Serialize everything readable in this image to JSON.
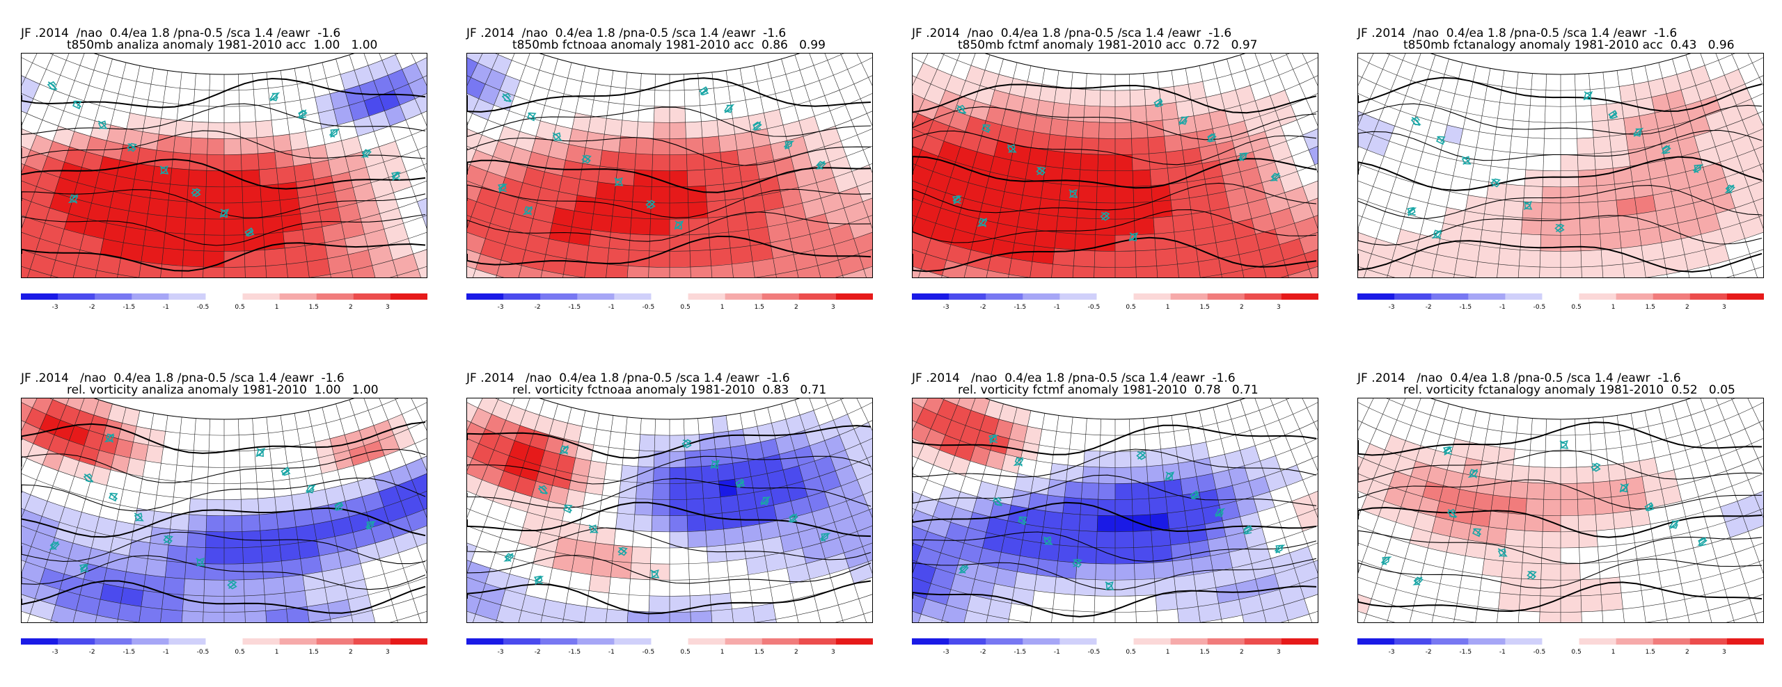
{
  "colorbar": {
    "colors": [
      "#1a1ae6",
      "#4b4bee",
      "#7878f2",
      "#a6a6f6",
      "#d0d0fa",
      "#ffffff",
      "#fbd8d8",
      "#f6aaaa",
      "#f17c7c",
      "#ec4d4d",
      "#e61a1a"
    ],
    "labels": [
      "-3",
      "-2",
      "-1.5",
      "-1",
      "-0.5",
      "0.5",
      "1",
      "1.5",
      "2",
      "3"
    ]
  },
  "panels": [
    {
      "line1": "JF .2014  /nao  0.4/ea 1.8 /pna-0.5 /sca 1.4 /eawr  -1.6",
      "line2": "t850mb analiza anomaly 1981-2010 acc  1.00   1.00",
      "pattern": "t_analiza"
    },
    {
      "line1": "JF .2014  /nao  0.4/ea 1.8 /pna-0.5 /sca 1.4 /eawr  -1.6",
      "line2": "t850mb fctnoaa anomaly 1981-2010 acc  0.86   0.99",
      "pattern": "t_noaa"
    },
    {
      "line1": "JF .2014  /nao  0.4/ea 1.8 /pna-0.5 /sca 1.4 /eawr  -1.6",
      "line2": "t850mb fctmf anomaly 1981-2010 acc  0.72   0.97",
      "pattern": "t_mf"
    },
    {
      "line1": "JF .2014  /nao  0.4/ea 1.8 /pna-0.5 /sca 1.4 /eawr  -1.6",
      "line2": "t850mb fctanalogy anomaly 1981-2010 acc  0.43   0.96",
      "pattern": "t_analog"
    },
    {
      "line1": "JF .2014   /nao  0.4/ea 1.8 /pna-0.5 /sca 1.4 /eawr  -1.6",
      "line2": "rel. vorticity analiza anomaly 1981-2010  1.00   1.00",
      "pattern": "v_analiza"
    },
    {
      "line1": "JF .2014   /nao  0.4/ea 1.8 /pna-0.5 /sca 1.4 /eawr  -1.6",
      "line2": "rel. vorticity fctnoaa anomaly 1981-2010  0.83   0.71",
      "pattern": "v_noaa"
    },
    {
      "line1": "JF .2014   /nao  0.4/ea 1.8 /pna-0.5 /sca 1.4 /eawr  -1.6",
      "line2": "rel. vorticity fctmf anomaly 1981-2010  0.78   0.71",
      "pattern": "v_mf"
    },
    {
      "line1": "JF .2014   /nao  0.4/ea 1.8 /pna-0.5 /sca 1.4 /eawr  -1.6",
      "line2": "rel. vorticity fctanalogy anomaly 1981-2010  0.52   0.05",
      "pattern": "v_analog"
    }
  ]
}
